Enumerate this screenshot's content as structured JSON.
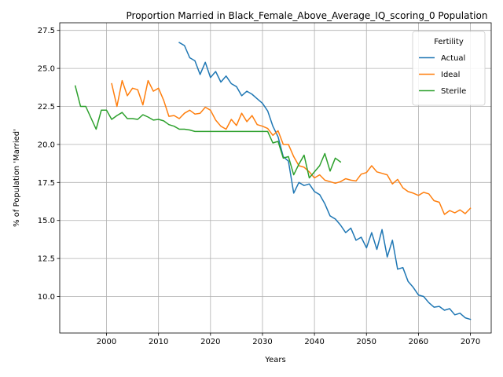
{
  "chart_data": {
    "type": "line",
    "title": "Proportion Married in Black_Female_Above_Average_IQ_scoring_0 Population",
    "xlabel": "Years",
    "ylabel": "% of Population 'Married'",
    "xlim": [
      1991,
      2074
    ],
    "ylim": [
      7.6,
      28.0
    ],
    "xticks": [
      2000,
      2010,
      2020,
      2030,
      2040,
      2050,
      2060,
      2070
    ],
    "yticks": [
      10.0,
      12.5,
      15.0,
      17.5,
      20.0,
      22.5,
      25.0,
      27.5
    ],
    "grid": true,
    "legend": {
      "title": "Fertility",
      "position": "top-right"
    },
    "series": [
      {
        "name": "Actual",
        "color": "#1f77b4",
        "x": [
          2014,
          2015,
          2016,
          2017,
          2018,
          2019,
          2020,
          2021,
          2022,
          2023,
          2024,
          2025,
          2026,
          2027,
          2028,
          2029,
          2030,
          2031,
          2032,
          2033,
          2034,
          2035,
          2036,
          2037,
          2038,
          2039,
          2040,
          2041,
          2042,
          2043,
          2044,
          2045,
          2046,
          2047,
          2048,
          2049,
          2050,
          2051,
          2052,
          2053,
          2054,
          2055,
          2056,
          2057,
          2058,
          2059,
          2060,
          2061,
          2062,
          2063,
          2064,
          2065,
          2066,
          2067,
          2068,
          2069,
          2070
        ],
        "y": [
          26.7,
          26.5,
          25.7,
          25.5,
          24.6,
          25.4,
          24.4,
          24.8,
          24.1,
          24.5,
          24.0,
          23.8,
          23.2,
          23.5,
          23.3,
          23.0,
          22.7,
          22.2,
          21.2,
          20.5,
          19.2,
          18.9,
          16.8,
          17.5,
          17.3,
          17.4,
          16.9,
          16.7,
          16.1,
          15.3,
          15.1,
          14.7,
          14.2,
          14.5,
          13.7,
          13.9,
          13.2,
          14.2,
          13.1,
          14.4,
          12.6,
          13.7,
          11.8,
          11.9,
          11.0,
          10.6,
          10.1,
          10.0,
          9.6,
          9.3,
          9.35,
          9.1,
          9.2,
          8.8,
          8.9,
          8.6,
          8.5
        ]
      },
      {
        "name": "Ideal",
        "color": "#ff7f0e",
        "x": [
          2001,
          2002,
          2003,
          2004,
          2005,
          2006,
          2007,
          2008,
          2009,
          2010,
          2011,
          2012,
          2013,
          2014,
          2015,
          2016,
          2017,
          2018,
          2019,
          2020,
          2021,
          2022,
          2023,
          2024,
          2025,
          2026,
          2027,
          2028,
          2029,
          2030,
          2031,
          2032,
          2033,
          2034,
          2035,
          2036,
          2037,
          2038,
          2039,
          2040,
          2041,
          2042,
          2043,
          2044,
          2045,
          2046,
          2047,
          2048,
          2049,
          2050,
          2051,
          2052,
          2053,
          2054,
          2055,
          2056,
          2057,
          2058,
          2059,
          2060,
          2061,
          2062,
          2063,
          2064,
          2065,
          2066,
          2067,
          2068,
          2069,
          2070
        ],
        "y": [
          24.0,
          22.5,
          24.2,
          23.2,
          23.7,
          23.6,
          22.6,
          24.2,
          23.5,
          23.7,
          22.9,
          21.85,
          21.9,
          21.7,
          22.05,
          22.25,
          22.0,
          22.05,
          22.45,
          22.25,
          21.6,
          21.2,
          21.0,
          21.65,
          21.25,
          22.05,
          21.5,
          21.9,
          21.3,
          21.2,
          21.05,
          20.6,
          20.9,
          20.0,
          20.0,
          19.2,
          18.6,
          18.5,
          18.2,
          17.8,
          18.0,
          17.65,
          17.55,
          17.45,
          17.55,
          17.75,
          17.65,
          17.6,
          18.05,
          18.15,
          18.6,
          18.2,
          18.1,
          18.0,
          17.4,
          17.7,
          17.15,
          16.9,
          16.8,
          16.65,
          16.85,
          16.75,
          16.3,
          16.2,
          15.4,
          15.65,
          15.5,
          15.7,
          15.45,
          15.8
        ]
      },
      {
        "name": "Sterile",
        "color": "#2ca02c",
        "x": [
          1994,
          1995,
          1996,
          1997,
          1998,
          1999,
          2000,
          2001,
          2002,
          2003,
          2004,
          2005,
          2006,
          2007,
          2008,
          2009,
          2010,
          2011,
          2012,
          2013,
          2014,
          2015,
          2016,
          2017,
          2018,
          2019,
          2020,
          2021,
          2022,
          2023,
          2024,
          2025,
          2026,
          2027,
          2028,
          2029,
          2030,
          2031,
          2032,
          2033,
          2034,
          2035,
          2036,
          2037,
          2038,
          2039,
          2040,
          2041,
          2042,
          2043,
          2044,
          2045
        ],
        "y": [
          23.85,
          22.5,
          22.5,
          21.75,
          21.0,
          22.25,
          22.25,
          21.65,
          21.9,
          22.1,
          21.7,
          21.7,
          21.65,
          21.95,
          21.8,
          21.6,
          21.65,
          21.55,
          21.3,
          21.2,
          21.0,
          21.0,
          20.95,
          20.85,
          20.85,
          20.85,
          20.85,
          20.85,
          20.85,
          20.85,
          20.85,
          20.85,
          20.85,
          20.85,
          20.85,
          20.85,
          20.85,
          20.85,
          20.1,
          20.2,
          19.1,
          19.2,
          18.0,
          18.7,
          19.3,
          17.8,
          18.2,
          18.6,
          19.4,
          18.25,
          19.1,
          18.85
        ]
      }
    ]
  }
}
